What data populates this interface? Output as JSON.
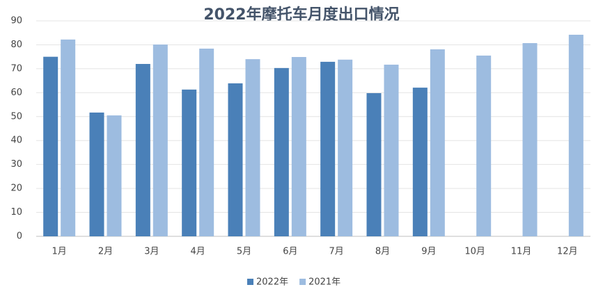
{
  "chart_data": {
    "type": "bar",
    "title": "2022年摩托车月度出口情况",
    "categories": [
      "1月",
      "2月",
      "3月",
      "4月",
      "5月",
      "6月",
      "7月",
      "8月",
      "9月",
      "10月",
      "11月",
      "12月"
    ],
    "series": [
      {
        "name": "2022年",
        "color": "#4a80b8",
        "values": [
          75,
          51.7,
          72,
          61.3,
          63.9,
          70.3,
          72.9,
          59.8,
          62.1,
          null,
          null,
          null
        ]
      },
      {
        "name": "2021年",
        "color": "#9dbce0",
        "values": [
          82.2,
          50.5,
          80.1,
          78.4,
          74,
          74.9,
          73.8,
          71.7,
          78.1,
          75.5,
          80.7,
          84.2
        ]
      }
    ],
    "ylim": [
      0,
      90
    ],
    "yticks": [
      0,
      10,
      20,
      30,
      40,
      50,
      60,
      70,
      80,
      90
    ],
    "grid": true,
    "legend": "bottom"
  }
}
